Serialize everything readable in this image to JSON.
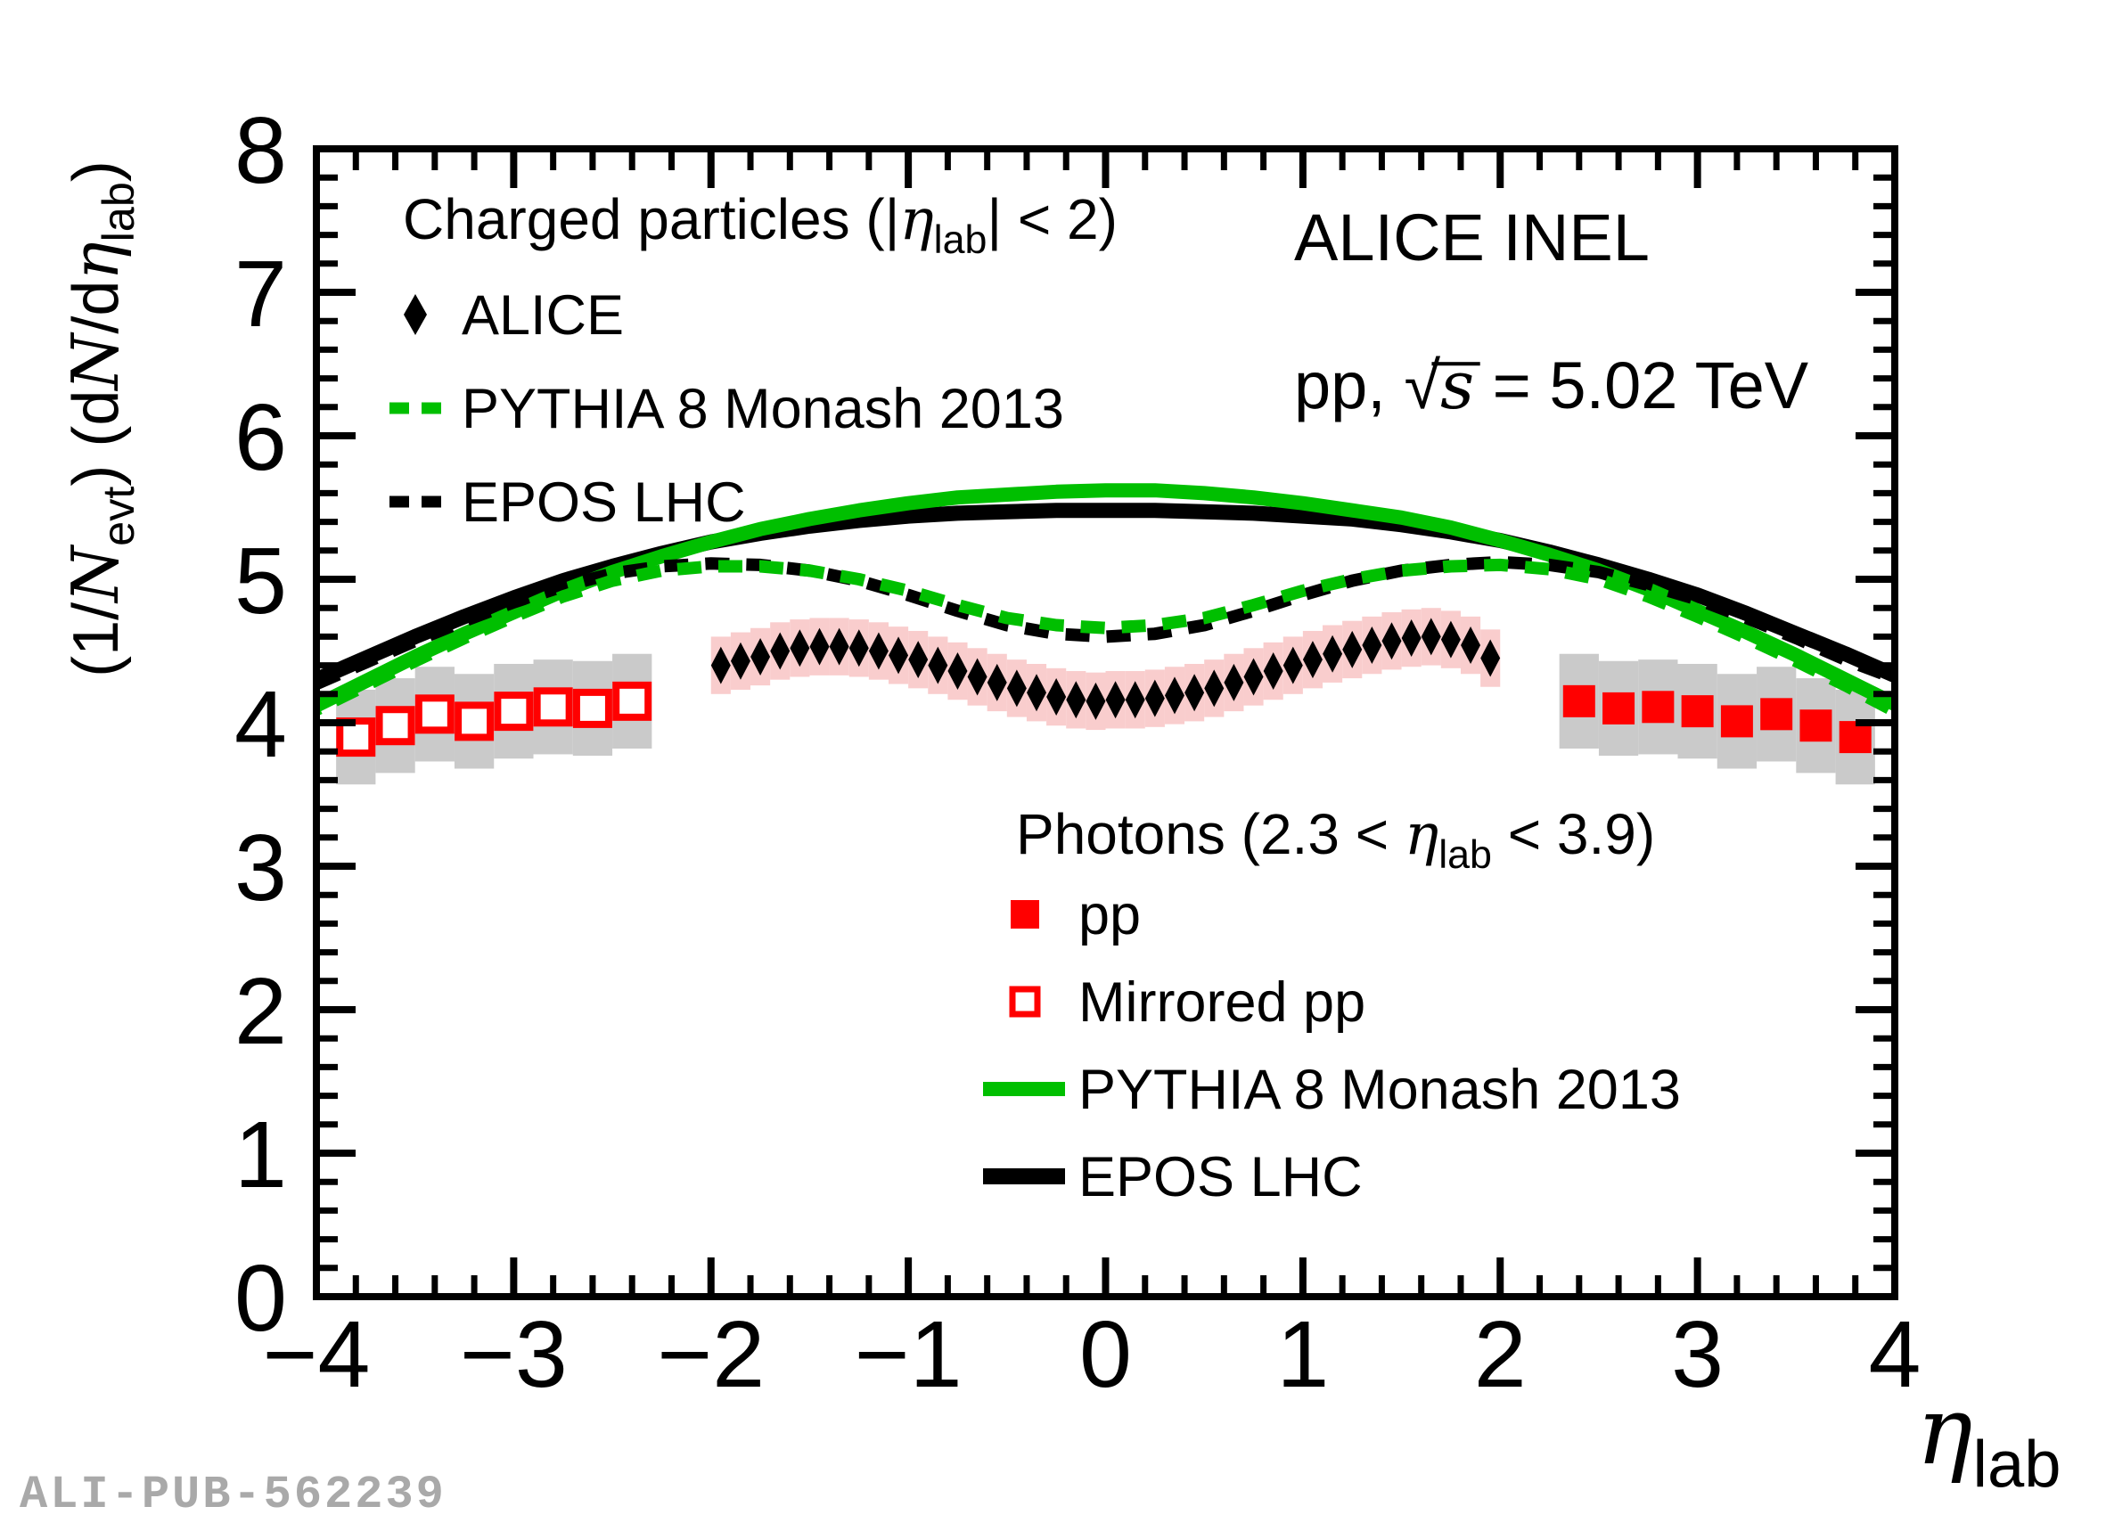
{
  "page": {
    "watermark": "ALI-PUB-562239",
    "background": "#ffffff"
  },
  "colors": {
    "green": "#00bf00",
    "black": "#000000",
    "red": "#ff0000",
    "pink_band": "#f9cdcd",
    "gray_band": "#cacaca",
    "watermark_gray": "#a9a9a9"
  },
  "annotations": {
    "experiment_line1": "ALICE INEL",
    "experiment_line2_parts": [
      {
        "t": "pp, "
      },
      {
        "t": "√",
        "f": ""
      },
      {
        "t": "s",
        "f": "i ov"
      },
      {
        "t": " = 5.02 TeV"
      }
    ]
  },
  "legend_charged": {
    "title_parts": [
      {
        "t": "Charged particles (|"
      },
      {
        "t": "η",
        "f": "i"
      },
      {
        "t": "lab",
        "f": "sub"
      },
      {
        "t": "| < 2)"
      }
    ],
    "items": [
      {
        "label": "ALICE",
        "marker": "diamond",
        "color": "#000000"
      },
      {
        "label": "PYTHIA 8 Monash 2013",
        "marker": "dash",
        "color": "#00bf00"
      },
      {
        "label": "EPOS LHC",
        "marker": "dash",
        "color": "#000000"
      }
    ]
  },
  "legend_photons": {
    "title_parts": [
      {
        "t": "Photons (2.3 < "
      },
      {
        "t": "η",
        "f": "i"
      },
      {
        "t": "lab",
        "f": "sub"
      },
      {
        "t": " < 3.9)"
      }
    ],
    "items": [
      {
        "label": "pp",
        "marker": "square",
        "color": "#ff0000"
      },
      {
        "label": "Mirrored pp",
        "marker": "square-open",
        "color": "#ff0000"
      },
      {
        "label": "PYTHIA 8 Monash 2013",
        "marker": "line",
        "color": "#00bf00"
      },
      {
        "label": "EPOS LHC",
        "marker": "line",
        "color": "#000000"
      }
    ]
  },
  "chart_data": {
    "type": "composite",
    "xlabel_parts": [
      {
        "t": "η",
        "f": "i"
      },
      {
        "t": "lab",
        "f": "sub"
      }
    ],
    "ylabel_parts": [
      {
        "t": "(1/"
      },
      {
        "t": "N",
        "f": "i"
      },
      {
        "t": "evt",
        "f": "sub"
      },
      {
        "t": ") (d"
      },
      {
        "t": "N",
        "f": "i"
      },
      {
        "t": "/d"
      },
      {
        "t": "η",
        "f": "i"
      },
      {
        "t": "lab",
        "f": "sub"
      },
      {
        "t": ")"
      }
    ],
    "xlim": [
      -4,
      4
    ],
    "ylim": [
      0,
      8
    ],
    "x_ticks": [
      -4,
      -3,
      -2,
      -1,
      0,
      1,
      2,
      3,
      4
    ],
    "x_tick_labels": [
      "−4",
      "−3",
      "−2",
      "−1",
      "0",
      "1",
      "2",
      "3",
      "4"
    ],
    "y_ticks": [
      0,
      1,
      2,
      3,
      4,
      5,
      6,
      7,
      8
    ],
    "y_tick_labels": [
      "0",
      "1",
      "2",
      "3",
      "4",
      "5",
      "6",
      "7",
      "8"
    ],
    "minor_tick_step": 0.2,
    "grid": false,
    "series": [
      {
        "name": "ALICE charged particles |eta|<2",
        "type": "scatter",
        "marker": "diamond",
        "color": "#000000",
        "band_color": "#f9cdcd",
        "band_half_width": 0.05,
        "band_err": 0.2,
        "points": [
          [
            -1.95,
            4.4
          ],
          [
            -1.85,
            4.43
          ],
          [
            -1.75,
            4.46
          ],
          [
            -1.65,
            4.5
          ],
          [
            -1.55,
            4.52
          ],
          [
            -1.45,
            4.53
          ],
          [
            -1.35,
            4.53
          ],
          [
            -1.25,
            4.52
          ],
          [
            -1.15,
            4.5
          ],
          [
            -1.05,
            4.47
          ],
          [
            -0.95,
            4.44
          ],
          [
            -0.85,
            4.4
          ],
          [
            -0.75,
            4.36
          ],
          [
            -0.65,
            4.32
          ],
          [
            -0.55,
            4.28
          ],
          [
            -0.45,
            4.24
          ],
          [
            -0.35,
            4.21
          ],
          [
            -0.25,
            4.18
          ],
          [
            -0.15,
            4.16
          ],
          [
            -0.05,
            4.15
          ],
          [
            0.05,
            4.16
          ],
          [
            0.15,
            4.16
          ],
          [
            0.25,
            4.17
          ],
          [
            0.35,
            4.19
          ],
          [
            0.45,
            4.21
          ],
          [
            0.55,
            4.24
          ],
          [
            0.65,
            4.28
          ],
          [
            0.75,
            4.32
          ],
          [
            0.85,
            4.36
          ],
          [
            0.95,
            4.4
          ],
          [
            1.05,
            4.44
          ],
          [
            1.15,
            4.48
          ],
          [
            1.25,
            4.51
          ],
          [
            1.35,
            4.54
          ],
          [
            1.45,
            4.57
          ],
          [
            1.55,
            4.59
          ],
          [
            1.65,
            4.6
          ],
          [
            1.75,
            4.58
          ],
          [
            1.85,
            4.54
          ],
          [
            1.95,
            4.45
          ]
        ]
      },
      {
        "name": "pp photons 2.3<eta<3.9",
        "type": "scatter",
        "marker": "square",
        "color": "#ff0000",
        "band_color": "#cacaca",
        "band_half_width": 0.1,
        "band_err": 0.33,
        "points": [
          [
            2.4,
            4.15
          ],
          [
            2.6,
            4.1
          ],
          [
            2.8,
            4.11
          ],
          [
            3.0,
            4.08
          ],
          [
            3.2,
            4.01
          ],
          [
            3.4,
            4.06
          ],
          [
            3.6,
            3.98
          ],
          [
            3.8,
            3.9
          ]
        ]
      },
      {
        "name": "Mirrored pp photons",
        "type": "scatter",
        "marker": "square-open",
        "color": "#ff0000",
        "band_color": "#cacaca",
        "band_half_width": 0.1,
        "band_err": 0.33,
        "points": [
          [
            -3.8,
            3.9
          ],
          [
            -3.6,
            3.98
          ],
          [
            -3.4,
            4.06
          ],
          [
            -3.2,
            4.01
          ],
          [
            -3.0,
            4.08
          ],
          [
            -2.8,
            4.11
          ],
          [
            -2.6,
            4.1
          ],
          [
            -2.4,
            4.15
          ]
        ]
      },
      {
        "name": "EPOS LHC photons",
        "type": "line",
        "style": "solid",
        "color": "#000000",
        "width": 17,
        "points": [
          [
            -4.0,
            4.3
          ],
          [
            -3.75,
            4.45
          ],
          [
            -3.5,
            4.6
          ],
          [
            -3.25,
            4.74
          ],
          [
            -3.0,
            4.87
          ],
          [
            -2.75,
            4.99
          ],
          [
            -2.5,
            5.09
          ],
          [
            -2.25,
            5.18
          ],
          [
            -2.0,
            5.26
          ],
          [
            -1.75,
            5.32
          ],
          [
            -1.5,
            5.37
          ],
          [
            -1.25,
            5.41
          ],
          [
            -1.0,
            5.44
          ],
          [
            -0.75,
            5.46
          ],
          [
            -0.5,
            5.47
          ],
          [
            -0.25,
            5.48
          ],
          [
            0.0,
            5.48
          ],
          [
            0.25,
            5.48
          ],
          [
            0.5,
            5.47
          ],
          [
            0.75,
            5.46
          ],
          [
            1.0,
            5.44
          ],
          [
            1.25,
            5.42
          ],
          [
            1.5,
            5.38
          ],
          [
            1.75,
            5.33
          ],
          [
            2.0,
            5.27
          ],
          [
            2.25,
            5.19
          ],
          [
            2.5,
            5.1
          ],
          [
            2.75,
            5.0
          ],
          [
            3.0,
            4.89
          ],
          [
            3.25,
            4.76
          ],
          [
            3.5,
            4.62
          ],
          [
            3.75,
            4.48
          ],
          [
            4.0,
            4.33
          ]
        ]
      },
      {
        "name": "PYTHIA 8 Monash 2013 photons",
        "type": "line",
        "style": "solid",
        "color": "#00bf00",
        "width": 16,
        "points": [
          [
            -4.0,
            4.12
          ],
          [
            -3.75,
            4.29
          ],
          [
            -3.5,
            4.46
          ],
          [
            -3.25,
            4.62
          ],
          [
            -3.0,
            4.77
          ],
          [
            -2.75,
            4.92
          ],
          [
            -2.5,
            5.05
          ],
          [
            -2.25,
            5.16
          ],
          [
            -2.0,
            5.26
          ],
          [
            -1.75,
            5.35
          ],
          [
            -1.5,
            5.42
          ],
          [
            -1.25,
            5.48
          ],
          [
            -1.0,
            5.53
          ],
          [
            -0.75,
            5.57
          ],
          [
            -0.5,
            5.59
          ],
          [
            -0.25,
            5.61
          ],
          [
            0.0,
            5.62
          ],
          [
            0.25,
            5.62
          ],
          [
            0.5,
            5.6
          ],
          [
            0.75,
            5.57
          ],
          [
            1.0,
            5.53
          ],
          [
            1.25,
            5.48
          ],
          [
            1.5,
            5.43
          ],
          [
            1.75,
            5.36
          ],
          [
            2.0,
            5.27
          ],
          [
            2.25,
            5.17
          ],
          [
            2.5,
            5.06
          ],
          [
            2.75,
            4.93
          ],
          [
            3.0,
            4.78
          ],
          [
            3.25,
            4.63
          ],
          [
            3.5,
            4.47
          ],
          [
            3.75,
            4.3
          ],
          [
            4.0,
            4.13
          ]
        ]
      },
      {
        "name": "EPOS LHC charged",
        "type": "line",
        "style": "dashed",
        "color": "#000000",
        "width": 14,
        "points": [
          [
            -4.0,
            4.27
          ],
          [
            -3.75,
            4.42
          ],
          [
            -3.5,
            4.57
          ],
          [
            -3.25,
            4.71
          ],
          [
            -3.0,
            4.84
          ],
          [
            -2.75,
            4.95
          ],
          [
            -2.5,
            5.04
          ],
          [
            -2.25,
            5.09
          ],
          [
            -2.0,
            5.11
          ],
          [
            -1.75,
            5.1
          ],
          [
            -1.5,
            5.06
          ],
          [
            -1.25,
            4.99
          ],
          [
            -1.0,
            4.89
          ],
          [
            -0.75,
            4.78
          ],
          [
            -0.5,
            4.68
          ],
          [
            -0.25,
            4.62
          ],
          [
            0.0,
            4.6
          ],
          [
            0.25,
            4.62
          ],
          [
            0.5,
            4.68
          ],
          [
            0.75,
            4.78
          ],
          [
            1.0,
            4.89
          ],
          [
            1.25,
            4.99
          ],
          [
            1.5,
            5.06
          ],
          [
            1.75,
            5.1
          ],
          [
            2.0,
            5.12
          ],
          [
            2.25,
            5.1
          ],
          [
            2.5,
            5.05
          ],
          [
            2.75,
            4.96
          ],
          [
            3.0,
            4.86
          ],
          [
            3.25,
            4.73
          ],
          [
            3.5,
            4.59
          ],
          [
            3.75,
            4.44
          ],
          [
            4.0,
            4.31
          ]
        ]
      },
      {
        "name": "PYTHIA 8 Monash 2013 charged",
        "type": "line",
        "style": "dashed",
        "color": "#00bf00",
        "width": 14,
        "points": [
          [
            -4.0,
            4.09
          ],
          [
            -3.75,
            4.26
          ],
          [
            -3.5,
            4.43
          ],
          [
            -3.25,
            4.59
          ],
          [
            -3.0,
            4.74
          ],
          [
            -2.75,
            4.88
          ],
          [
            -2.5,
            4.99
          ],
          [
            -2.25,
            5.06
          ],
          [
            -2.0,
            5.09
          ],
          [
            -1.75,
            5.09
          ],
          [
            -1.5,
            5.06
          ],
          [
            -1.25,
            5.0
          ],
          [
            -1.0,
            4.92
          ],
          [
            -0.75,
            4.82
          ],
          [
            -0.5,
            4.73
          ],
          [
            -0.25,
            4.68
          ],
          [
            0.0,
            4.66
          ],
          [
            0.25,
            4.68
          ],
          [
            0.5,
            4.73
          ],
          [
            0.75,
            4.82
          ],
          [
            1.0,
            4.92
          ],
          [
            1.25,
            5.0
          ],
          [
            1.5,
            5.06
          ],
          [
            1.75,
            5.09
          ],
          [
            2.0,
            5.1
          ],
          [
            2.25,
            5.07
          ],
          [
            2.5,
            5.0
          ],
          [
            2.75,
            4.88
          ],
          [
            3.0,
            4.74
          ],
          [
            3.25,
            4.59
          ],
          [
            3.5,
            4.43
          ],
          [
            3.75,
            4.26
          ],
          [
            4.0,
            4.08
          ]
        ]
      }
    ]
  }
}
